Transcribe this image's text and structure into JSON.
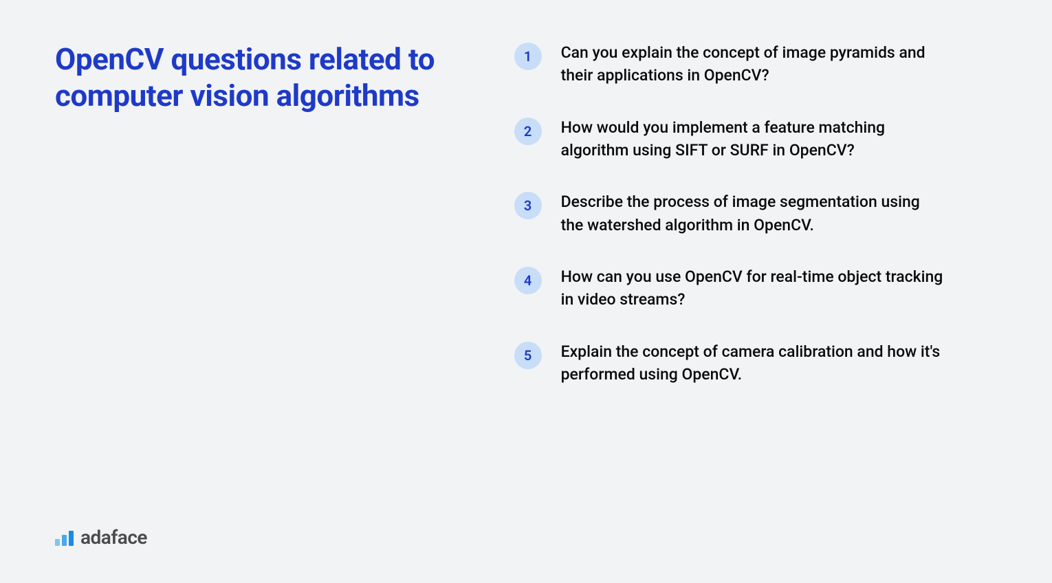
{
  "title": "OpenCV questions related to computer vision algorithms",
  "questions": [
    {
      "number": "1",
      "text": "Can you explain the concept of image pyramids and their applications in OpenCV?"
    },
    {
      "number": "2",
      "text": "How would you implement a feature matching algorithm using SIFT or SURF in OpenCV?"
    },
    {
      "number": "3",
      "text": "Describe the process of image segmentation using the watershed algorithm in OpenCV."
    },
    {
      "number": "4",
      "text": "How can you use OpenCV for real-time object tracking in video streams?"
    },
    {
      "number": "5",
      "text": "Explain the concept of camera calibration and how it's performed using OpenCV."
    }
  ],
  "logo": {
    "text": "adaface",
    "bar_colors": [
      "#7fc5f5",
      "#4ba8e8",
      "#1a8be0"
    ]
  },
  "colors": {
    "background": "#f1f3f5",
    "title_color": "#1e3ac7",
    "number_badge_bg": "#c8ddf7",
    "number_badge_text": "#1e3ac7",
    "question_text": "#0a0a0a",
    "logo_text": "#4a4a4a"
  },
  "typography": {
    "title_fontsize": 44,
    "title_fontweight": 700,
    "number_fontsize": 20,
    "question_fontsize": 23,
    "logo_fontsize": 28
  }
}
